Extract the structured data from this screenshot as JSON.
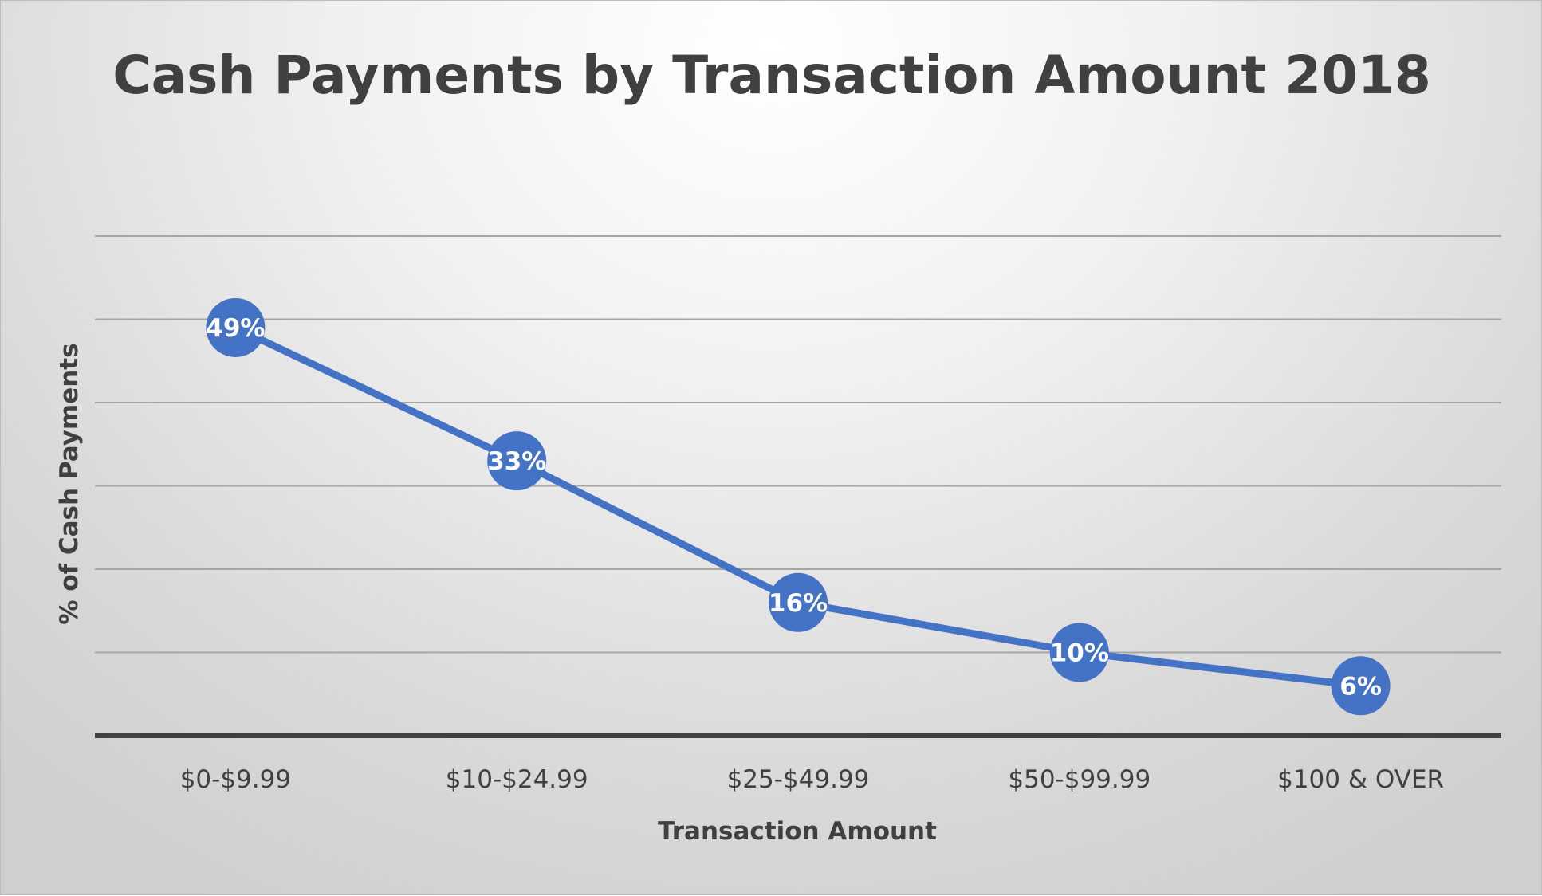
{
  "chart_data": {
    "type": "line",
    "title": "Cash Payments by Transaction Amount 2018",
    "xlabel": "Transaction Amount",
    "ylabel": "% of Cash Payments",
    "categories": [
      "$0-$9.99",
      "$10-$24.99",
      "$25-$49.99",
      "$50-$99.99",
      "$100 & OVER"
    ],
    "values": [
      49,
      33,
      16,
      10,
      6
    ],
    "data_labels": [
      "49%",
      "33%",
      "16%",
      "10%",
      "6%"
    ],
    "ylim": [
      0,
      60
    ],
    "y_gridline_step": 10,
    "y_tick_labels_shown": false,
    "grid": true,
    "legend": "none",
    "series_color": "#4472c4",
    "gridline_color": "#a6a6a6",
    "axis_color": "#404040"
  }
}
